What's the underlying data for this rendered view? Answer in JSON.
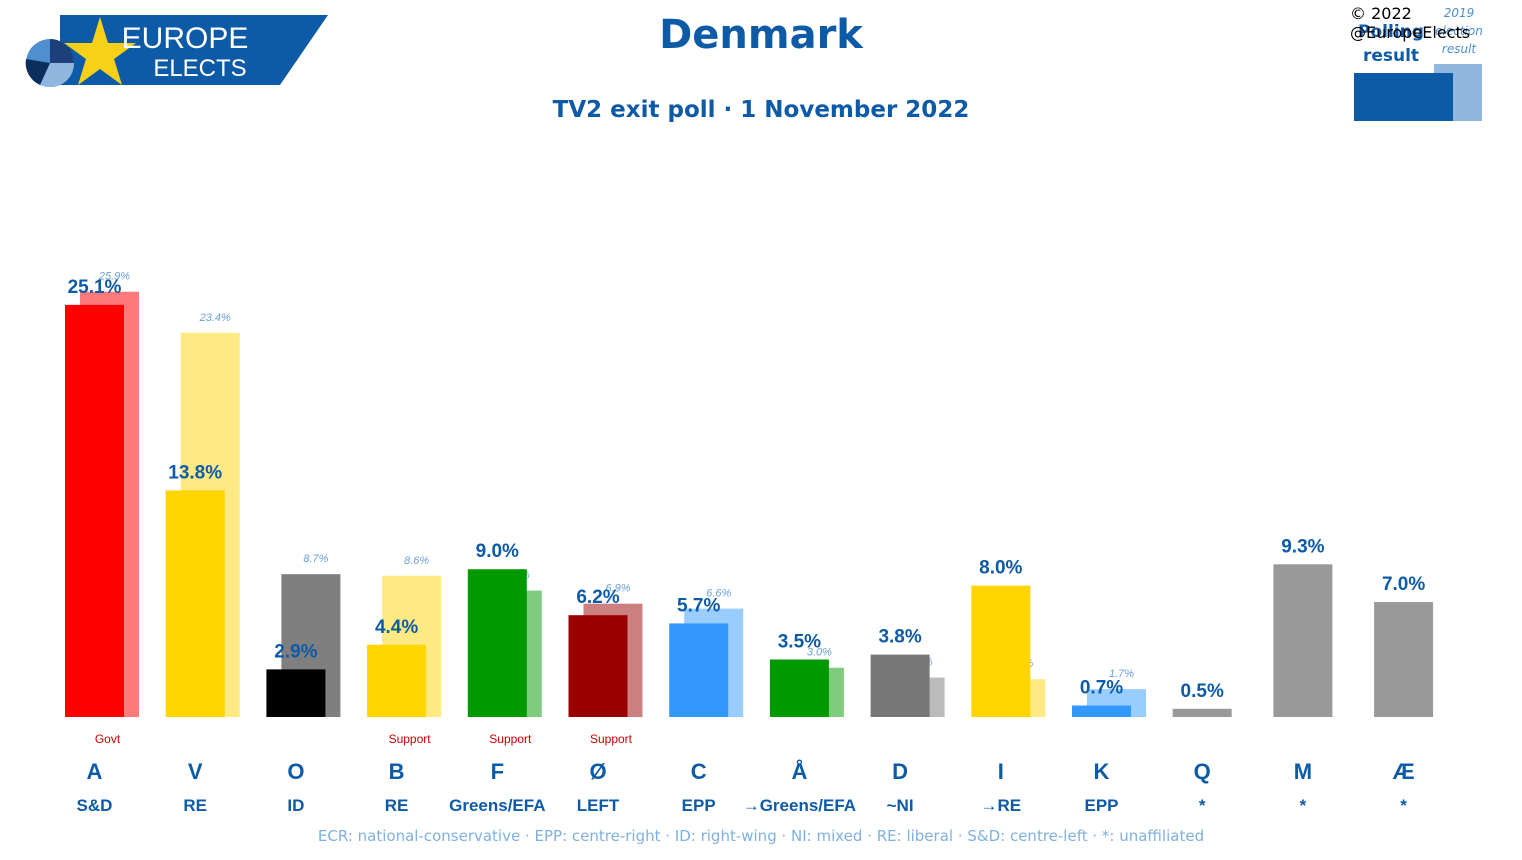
{
  "brand": {
    "line1": "EUROPE",
    "line2": "ELECTS"
  },
  "header": {
    "title": "Denmark",
    "subtitle": "TV2 exit poll · 1 November 2022"
  },
  "legend": {
    "current_label": "Polling result",
    "previous_label": "2019 election result",
    "copyright": "© 2022 @EuropeElects"
  },
  "footnote": "ECR: national-conservative · EPP: centre-right · ID: right-wing · NI: mixed · RE: liberal · S&D: centre-left · *: unaffiliated",
  "chart_data": {
    "type": "bar",
    "title": "Denmark",
    "subtitle": "TV2 exit poll · 1 November 2022",
    "ylim": [
      0,
      26
    ],
    "series": [
      {
        "name": "Polling result",
        "values": [
          25.1,
          13.8,
          2.9,
          4.4,
          9.0,
          6.2,
          5.7,
          3.5,
          3.8,
          8.0,
          0.7,
          0.5,
          9.3,
          7.0
        ]
      },
      {
        "name": "2019 election result",
        "values": [
          25.9,
          23.4,
          8.7,
          8.6,
          7.7,
          6.9,
          6.6,
          3.0,
          2.4,
          2.3,
          1.7,
          null,
          null,
          null
        ]
      }
    ],
    "parties": [
      {
        "code": "A",
        "group": "S&D",
        "status": "Govt",
        "color": "#ff0000",
        "prev_color": "#ff7b7b",
        "value": "25.1%",
        "prev": "25.9%"
      },
      {
        "code": "V",
        "group": "RE",
        "status": "",
        "color": "#ffd500",
        "prev_color": "#ffe983",
        "value": "13.8%",
        "prev": "23.4%"
      },
      {
        "code": "O",
        "group": "ID",
        "status": "",
        "color": "#000000",
        "prev_color": "#7f7f7f",
        "value": "2.9%",
        "prev": "8.7%"
      },
      {
        "code": "B",
        "group": "RE",
        "status": "Support",
        "color": "#ffd500",
        "prev_color": "#ffe983",
        "value": "4.4%",
        "prev": "8.6%"
      },
      {
        "code": "F",
        "group": "Greens/EFA",
        "status": "Support",
        "color": "#009900",
        "prev_color": "#7fcc7f",
        "value": "9.0%",
        "prev": "7.7%"
      },
      {
        "code": "Ø",
        "group": "LEFT",
        "status": "Support",
        "color": "#990000",
        "prev_color": "#cc7f7f",
        "value": "6.2%",
        "prev": "6.9%"
      },
      {
        "code": "C",
        "group": "EPP",
        "status": "",
        "color": "#3399ff",
        "prev_color": "#99ccff",
        "value": "5.7%",
        "prev": "6.6%"
      },
      {
        "code": "Å",
        "group": "→Greens/EFA",
        "status": "",
        "color": "#009900",
        "prev_color": "#7fcc7f",
        "value": "3.5%",
        "prev": "3.0%"
      },
      {
        "code": "D",
        "group": "~NI",
        "status": "",
        "color": "#777777",
        "prev_color": "#bbbbbb",
        "value": "3.8%",
        "prev": "2.4%"
      },
      {
        "code": "I",
        "group": "→RE",
        "status": "",
        "color": "#ffd500",
        "prev_color": "#ffe983",
        "value": "8.0%",
        "prev": "2.3%"
      },
      {
        "code": "K",
        "group": "EPP",
        "status": "",
        "color": "#3399ff",
        "prev_color": "#99ccff",
        "value": "0.7%",
        "prev": "1.7%"
      },
      {
        "code": "Q",
        "group": "*",
        "status": "",
        "color": "#999999",
        "prev_color": "",
        "value": "0.5%",
        "prev": ""
      },
      {
        "code": "M",
        "group": "*",
        "status": "",
        "color": "#999999",
        "prev_color": "",
        "value": "9.3%",
        "prev": ""
      },
      {
        "code": "Æ",
        "group": "*",
        "status": "",
        "color": "#999999",
        "prev_color": "",
        "value": "7.0%",
        "prev": ""
      }
    ]
  }
}
